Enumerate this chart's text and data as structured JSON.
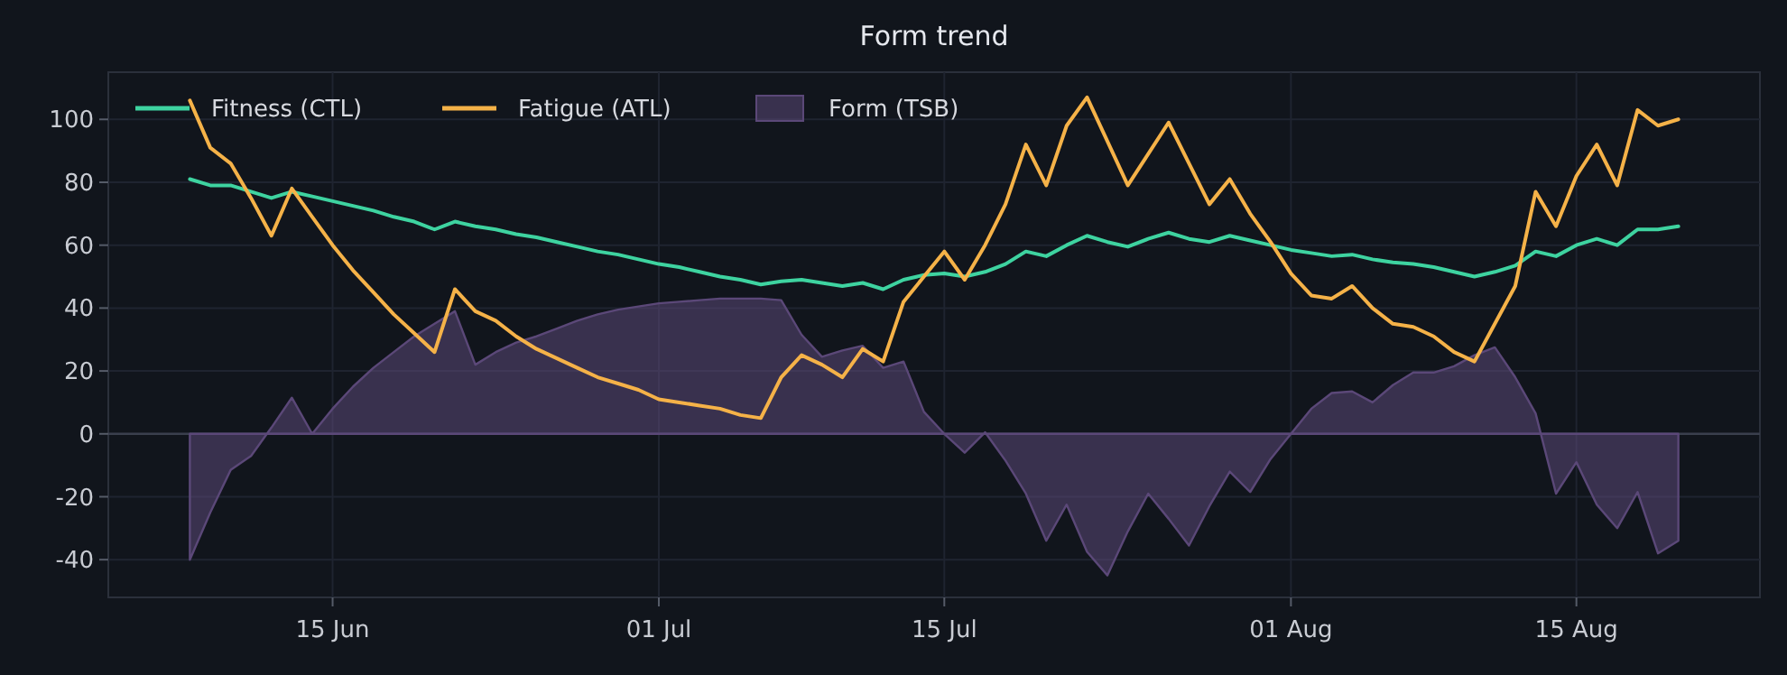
{
  "chart_data": {
    "type": "line",
    "title": "Form trend",
    "x": [
      "--06-08",
      "--06-09",
      "--06-10",
      "--06-11",
      "--06-12",
      "--06-13",
      "--06-14",
      "--06-15",
      "--06-16",
      "--06-17",
      "--06-18",
      "--06-19",
      "--06-20",
      "--06-21",
      "--06-22",
      "--06-23",
      "--06-24",
      "--06-25",
      "--06-26",
      "--06-27",
      "--06-28",
      "--06-29",
      "--06-30",
      "--07-01",
      "--07-02",
      "--07-03",
      "--07-04",
      "--07-05",
      "--07-06",
      "--07-07",
      "--07-08",
      "--07-09",
      "--07-10",
      "--07-11",
      "--07-12",
      "--07-13",
      "--07-14",
      "--07-15",
      "--07-16",
      "--07-17",
      "--07-18",
      "--07-19",
      "--07-20",
      "--07-21",
      "--07-22",
      "--07-23",
      "--07-24",
      "--07-25",
      "--07-26",
      "--07-27",
      "--07-28",
      "--07-29",
      "--07-30",
      "--07-31",
      "--08-01",
      "--08-02",
      "--08-03",
      "--08-04",
      "--08-05",
      "--08-06",
      "--08-07",
      "--08-08",
      "--08-09",
      "--08-10",
      "--08-11",
      "--08-12",
      "--08-13",
      "--08-14",
      "--08-15",
      "--08-16",
      "--08-17",
      "--08-18",
      "--08-19",
      "--08-20"
    ],
    "series": [
      {
        "name": "Fitness (CTL)",
        "color": "#3ed3a0",
        "values": [
          81,
          79,
          79,
          77,
          75,
          77,
          75.5,
          74,
          72.5,
          71,
          69,
          67.5,
          65,
          67.5,
          66,
          65,
          63.5,
          62.5,
          61,
          59.5,
          58,
          57,
          55.5,
          54,
          53,
          51.5,
          50,
          49,
          47.5,
          48.5,
          49,
          48,
          47,
          48,
          46,
          49,
          50.5,
          51,
          50,
          51.5,
          54,
          58,
          56.5,
          60,
          63,
          61,
          59.5,
          62,
          64,
          62,
          61,
          63,
          61.5,
          60,
          58.5,
          57.5,
          56.5,
          57,
          55.5,
          54.5,
          54,
          53,
          51.5,
          50,
          51.5,
          53.5,
          58,
          56.5,
          60,
          62,
          60,
          65,
          65,
          66
        ]
      },
      {
        "name": "Fatigue (ATL)",
        "color": "#f5b248",
        "values": [
          106,
          91,
          86,
          75,
          63,
          78,
          69,
          60,
          52,
          45,
          38,
          32,
          26,
          46,
          39,
          36,
          31,
          27,
          24,
          21,
          18,
          16,
          14,
          11,
          10,
          9,
          8,
          6,
          5,
          18,
          25,
          22,
          18,
          27,
          23,
          42,
          50,
          58,
          49,
          60,
          73,
          92,
          79,
          98,
          107,
          93,
          79,
          89,
          99,
          86,
          73,
          81,
          70,
          61,
          51,
          44,
          43,
          47,
          40,
          35,
          34,
          31,
          26,
          23,
          35,
          47,
          77,
          66,
          82,
          92,
          79,
          103,
          98,
          100
        ]
      },
      {
        "name": "Form (TSB)",
        "type": "area",
        "color": "#5b4878",
        "values": [
          -40,
          -25,
          -11.5,
          -7,
          2,
          11.5,
          0,
          8,
          15,
          21,
          26,
          31,
          35,
          39,
          22,
          26,
          29,
          31,
          33.5,
          36,
          38,
          39.5,
          40.5,
          41.5,
          42,
          42.5,
          43,
          43,
          43,
          42.5,
          31.5,
          24.5,
          26.5,
          28,
          21,
          23,
          7,
          0,
          -6,
          0.5,
          -8.5,
          -19,
          -34,
          -22.5,
          -37.5,
          -45,
          -31,
          -19,
          -27,
          -35.5,
          -23,
          -12,
          -18.5,
          -8,
          0,
          8,
          13,
          13.5,
          10,
          15.5,
          19.5,
          19.5,
          21.5,
          25,
          27.5,
          18,
          6.5,
          -19,
          -9,
          -22.5,
          -30,
          -18.5,
          -38,
          -34
        ]
      }
    ],
    "xlim": [
      "--06-04",
      "--08-24"
    ],
    "xticks": [
      {
        "value": "--06-15",
        "label": "15 Jun"
      },
      {
        "value": "--07-01",
        "label": "01 Jul"
      },
      {
        "value": "--07-15",
        "label": "15 Jul"
      },
      {
        "value": "--08-01",
        "label": "01 Aug"
      },
      {
        "value": "--08-15",
        "label": "15 Aug"
      }
    ],
    "ylim": [
      -52,
      115
    ],
    "yticks": [
      -40,
      -20,
      0,
      20,
      40,
      60,
      80,
      100
    ],
    "ref_lines": [
      {
        "axis": "y",
        "value": 0,
        "color": "#3a3f4d"
      }
    ],
    "grid": true,
    "legend": "top left",
    "marker": "none",
    "line_style": "solid"
  }
}
